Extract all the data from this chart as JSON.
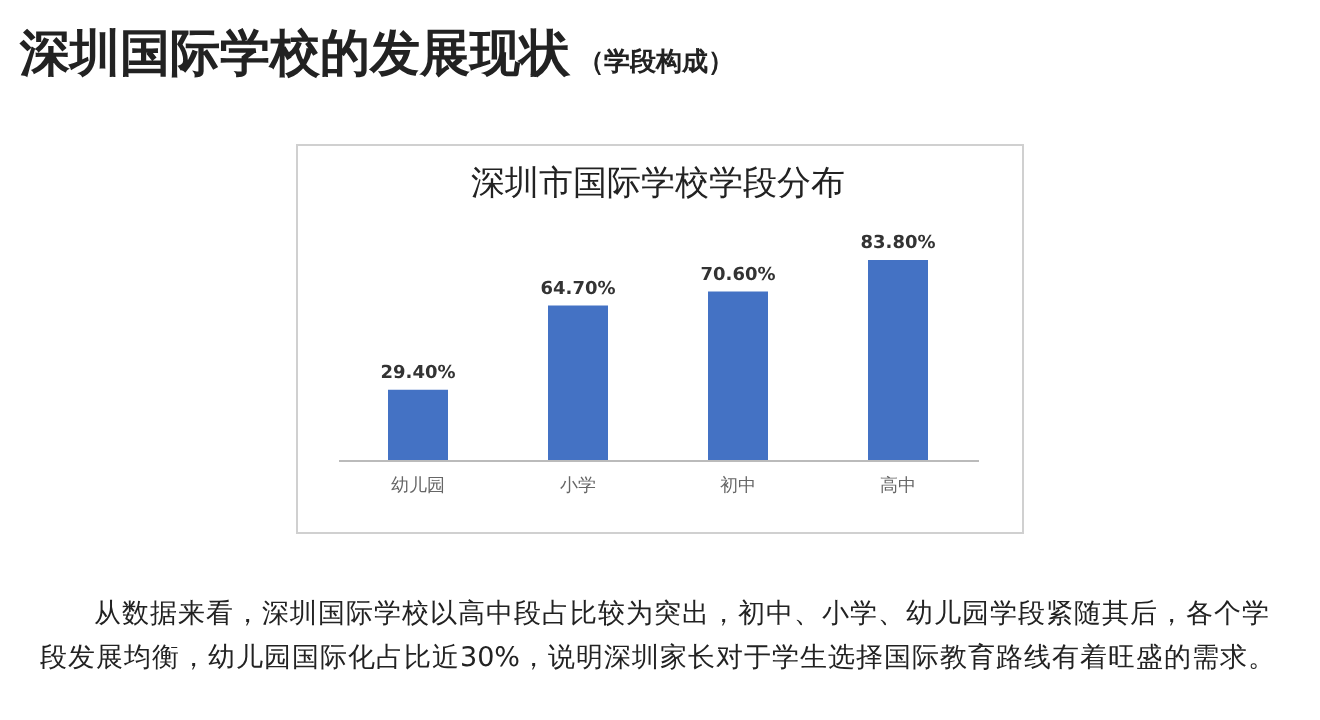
{
  "chart_data": {
    "type": "bar",
    "title": "深圳市国际学校学段分布",
    "categories": [
      "幼儿园",
      "小学",
      "初中",
      "高中"
    ],
    "values": [
      29.4,
      64.7,
      70.6,
      83.8
    ],
    "value_labels": [
      "29.40%",
      "64.70%",
      "70.60%",
      "83.80%"
    ],
    "color": "#4472c4",
    "annotations": [
      "深圳国际学校的发展现状",
      "（学段构成）",
      "从数据来看，深圳国际学校以高中段占比较为突出，初中、小学、幼儿园学段紧随其后，各个学段发展均衡，幼儿园国际化占比近30%，说明深圳家长对于学生选择国际教育路线有着旺盛的需求。"
    ]
  }
}
